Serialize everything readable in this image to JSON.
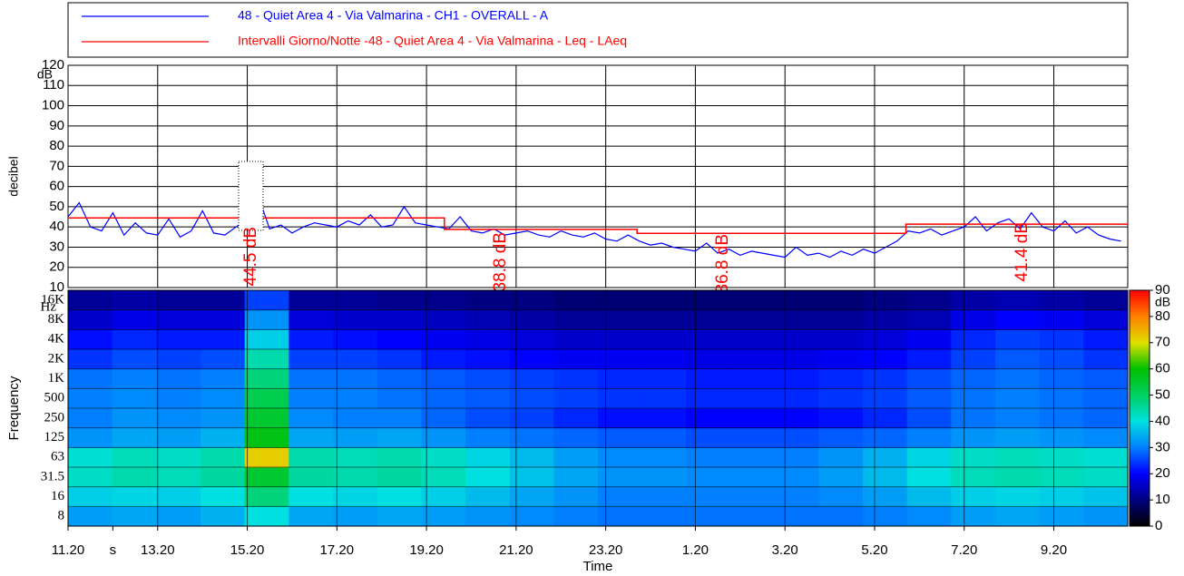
{
  "chart_data": [
    {
      "type": "line",
      "ylabel": "decibel",
      "y_unit": "dB",
      "ylim": [
        10,
        120
      ],
      "yticks": [
        10,
        20,
        30,
        40,
        50,
        60,
        70,
        80,
        90,
        100,
        110,
        120
      ],
      "xlim": [
        0,
        23.65
      ],
      "series": [
        {
          "name": "48 - Quiet Area 4 - Via Valmarina - CH1 - OVERALL - A",
          "color": "#0000ff",
          "x": [
            0,
            0.25,
            0.5,
            0.75,
            1,
            1.25,
            1.5,
            1.75,
            2,
            2.25,
            2.5,
            2.75,
            3,
            3.25,
            3.5,
            3.75,
            4,
            4.25,
            4.5,
            4.75,
            5,
            5.25,
            5.5,
            5.75,
            6,
            6.25,
            6.5,
            6.75,
            7,
            7.25,
            7.5,
            7.75,
            8,
            8.25,
            8.5,
            8.75,
            9,
            9.25,
            9.5,
            9.75,
            10,
            10.25,
            10.5,
            10.75,
            11,
            11.25,
            11.5,
            11.75,
            12,
            12.25,
            12.5,
            12.75,
            13,
            13.25,
            13.5,
            13.75,
            14,
            14.25,
            14.5,
            14.75,
            15,
            15.25,
            15.5,
            15.75,
            16,
            16.25,
            16.5,
            16.75,
            17,
            17.25,
            17.5,
            17.75,
            18,
            18.25,
            18.5,
            18.75,
            19,
            19.25,
            19.5,
            19.75,
            20,
            20.25,
            20.5,
            20.75,
            21,
            21.25,
            21.5,
            21.75,
            22,
            22.25,
            22.5,
            22.75,
            23,
            23.25,
            23.5
          ],
          "values": [
            45,
            52,
            40,
            38,
            47,
            36,
            42,
            37,
            36,
            44,
            35,
            38,
            48,
            37,
            36,
            40,
            44,
            55,
            39,
            41,
            37,
            40,
            42,
            41,
            40,
            43,
            41,
            46,
            40,
            41,
            50,
            42,
            41,
            40,
            39,
            45,
            38,
            37,
            39,
            36,
            37,
            38,
            36,
            35,
            38,
            36,
            35,
            37,
            34,
            33,
            36,
            33,
            31,
            32,
            30,
            29,
            28,
            32,
            27,
            29,
            26,
            28,
            27,
            26,
            25,
            30,
            26,
            27,
            25,
            28,
            26,
            29,
            27,
            30,
            33,
            38,
            37,
            39,
            36,
            38,
            40,
            45,
            38,
            42,
            44,
            39,
            47,
            40,
            38,
            43,
            37,
            40,
            36,
            34,
            33
          ]
        },
        {
          "name": "Intervalli Giorno/Notte -48 - Quiet Area 4 - Via Valmarina - Leq - LAeq",
          "color": "#ff0000",
          "x": [
            0,
            8.4,
            8.4,
            12.7,
            12.7,
            18.7,
            18.7,
            23.65
          ],
          "values": [
            44.5,
            44.5,
            38.8,
            38.8,
            36.8,
            36.8,
            41.4,
            41.4
          ]
        }
      ],
      "interval_labels": [
        "44.5 dB",
        "38.8 dB",
        "36.8 dB",
        "41.4 dB"
      ],
      "grid": true
    },
    {
      "type": "heatmap",
      "ylabel": "Frequency",
      "y_unit": "Hz",
      "xlabel": "Time",
      "y_categories": [
        "8",
        "16",
        "31.5",
        "63",
        "125",
        "250",
        "500",
        "1K",
        "2K",
        "4K",
        "8K",
        "16K"
      ],
      "xlim": [
        0,
        23.65
      ],
      "xticks": [
        {
          "value": 0,
          "label": "11.20"
        },
        {
          "value": 1,
          "label": "s"
        },
        {
          "value": 2,
          "label": "13.20"
        },
        {
          "value": 4,
          "label": "15.20"
        },
        {
          "value": 6,
          "label": "17.20"
        },
        {
          "value": 8,
          "label": "19.20"
        },
        {
          "value": 10,
          "label": "21.20"
        },
        {
          "value": 12,
          "label": "23.20"
        },
        {
          "value": 14,
          "label": "1.20"
        },
        {
          "value": 16,
          "label": "3.20"
        },
        {
          "value": 18,
          "label": "5.20"
        },
        {
          "value": 20,
          "label": "7.20"
        },
        {
          "value": 22,
          "label": "9.20"
        }
      ],
      "z": [
        [
          33,
          34,
          33,
          35,
          40,
          34,
          33,
          34,
          33,
          32,
          31,
          30,
          29,
          29,
          29,
          29,
          29,
          29,
          30,
          31,
          33,
          34,
          33,
          32
        ],
        [
          38,
          39,
          38,
          40,
          48,
          40,
          39,
          40,
          38,
          36,
          34,
          32,
          30,
          30,
          30,
          30,
          30,
          31,
          33,
          36,
          38,
          39,
          38,
          37
        ],
        [
          42,
          44,
          43,
          45,
          55,
          45,
          44,
          45,
          43,
          40,
          37,
          34,
          32,
          32,
          31,
          31,
          31,
          33,
          36,
          40,
          43,
          44,
          43,
          42
        ],
        [
          41,
          43,
          42,
          44,
          72,
          44,
          43,
          44,
          42,
          39,
          36,
          33,
          31,
          31,
          30,
          30,
          30,
          32,
          35,
          39,
          42,
          43,
          42,
          41
        ],
        [
          32,
          34,
          33,
          35,
          58,
          34,
          33,
          34,
          32,
          30,
          29,
          28,
          27,
          27,
          26,
          26,
          26,
          27,
          28,
          30,
          32,
          33,
          32,
          31
        ],
        [
          30,
          32,
          31,
          32,
          55,
          31,
          30,
          30,
          28,
          26,
          25,
          23,
          21,
          21,
          20,
          20,
          20,
          21,
          23,
          26,
          29,
          30,
          29,
          28
        ],
        [
          30,
          31,
          30,
          31,
          52,
          30,
          30,
          29,
          28,
          27,
          26,
          25,
          24,
          24,
          23,
          23,
          23,
          24,
          25,
          27,
          29,
          30,
          29,
          28
        ],
        [
          29,
          30,
          29,
          30,
          48,
          29,
          29,
          28,
          27,
          26,
          25,
          24,
          23,
          23,
          22,
          22,
          22,
          23,
          24,
          26,
          28,
          29,
          28,
          27
        ],
        [
          24,
          26,
          25,
          26,
          44,
          25,
          25,
          24,
          22,
          21,
          20,
          19,
          19,
          19,
          18,
          18,
          18,
          19,
          20,
          22,
          25,
          27,
          26,
          24
        ],
        [
          21,
          23,
          22,
          22,
          38,
          22,
          21,
          20,
          19,
          18,
          17,
          16,
          16,
          16,
          16,
          16,
          16,
          16,
          17,
          19,
          23,
          25,
          24,
          22
        ],
        [
          16,
          18,
          17,
          17,
          32,
          17,
          16,
          16,
          15,
          14,
          13,
          12,
          12,
          12,
          12,
          12,
          12,
          12,
          13,
          14,
          18,
          20,
          19,
          17
        ],
        [
          12,
          13,
          12,
          12,
          25,
          12,
          12,
          11,
          11,
          10,
          10,
          9,
          9,
          9,
          9,
          9,
          9,
          9,
          10,
          11,
          13,
          14,
          13,
          12
        ]
      ],
      "z_unit": "dB",
      "zlim": [
        0,
        90
      ],
      "zticks": [
        0,
        10,
        20,
        30,
        40,
        50,
        60,
        70,
        80,
        90
      ],
      "colorscale": [
        "#000000",
        "#000080",
        "#0000ff",
        "#0080ff",
        "#00e0e0",
        "#00d060",
        "#00c000",
        "#e0e000",
        "#ff8000",
        "#ff0000"
      ],
      "grid": true
    }
  ]
}
